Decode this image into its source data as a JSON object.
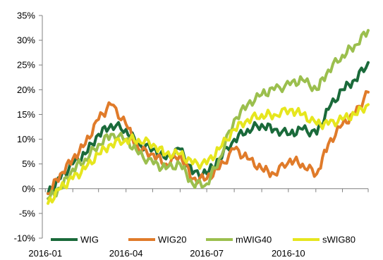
{
  "chart_data": {
    "type": "line",
    "title": "",
    "xlabel": "",
    "ylabel": "",
    "ylim": [
      -10,
      35
    ],
    "yticks": [
      "-10%",
      "-5%",
      "0%",
      "5%",
      "10%",
      "15%",
      "20%",
      "25%",
      "30%",
      "35%"
    ],
    "xticks": [
      "2016-01",
      "2016-04",
      "2016-07",
      "2016-10"
    ],
    "x": [
      "2016-01-04",
      "2016-01-18",
      "2016-02-01",
      "2016-02-15",
      "2016-03-01",
      "2016-03-15",
      "2016-04-01",
      "2016-04-15",
      "2016-05-02",
      "2016-05-16",
      "2016-06-01",
      "2016-06-15",
      "2016-07-01",
      "2016-07-15",
      "2016-08-01",
      "2016-08-16",
      "2016-09-01",
      "2016-09-15",
      "2016-10-03",
      "2016-10-17",
      "2016-11-02",
      "2016-11-15",
      "2016-12-01",
      "2016-12-15",
      "2016-12-30"
    ],
    "grid": false,
    "legend": "bottom",
    "series": [
      {
        "name": "WIG",
        "color": "#1a6a3a",
        "values": [
          -1,
          2,
          5,
          7,
          11,
          13,
          12,
          9,
          8,
          6,
          8,
          3,
          3,
          6,
          10,
          12,
          13,
          12,
          11,
          12,
          11,
          16,
          20,
          22,
          25.5
        ]
      },
      {
        "name": "WIG20",
        "color": "#e07b2a",
        "values": [
          -1,
          3,
          6,
          9,
          14,
          17,
          13,
          8,
          7,
          5,
          7,
          2,
          2,
          4,
          8,
          6,
          4,
          3,
          6,
          5,
          3,
          9,
          13,
          15,
          19.5
        ]
      },
      {
        "name": "mWIG40",
        "color": "#9bbf4e",
        "values": [
          -2,
          0,
          4,
          6,
          9,
          11,
          10,
          7,
          5,
          4,
          5,
          1,
          1,
          6,
          14,
          17,
          19,
          20,
          21,
          22,
          20,
          24,
          27,
          29,
          32
        ]
      },
      {
        "name": "sWIG80",
        "color": "#e6e61e",
        "values": [
          -3,
          0,
          2,
          4,
          7,
          9,
          10,
          10,
          9,
          7,
          7,
          5,
          5,
          8,
          12,
          14,
          15,
          15,
          16,
          15,
          13,
          13,
          14,
          15,
          17
        ]
      }
    ]
  }
}
